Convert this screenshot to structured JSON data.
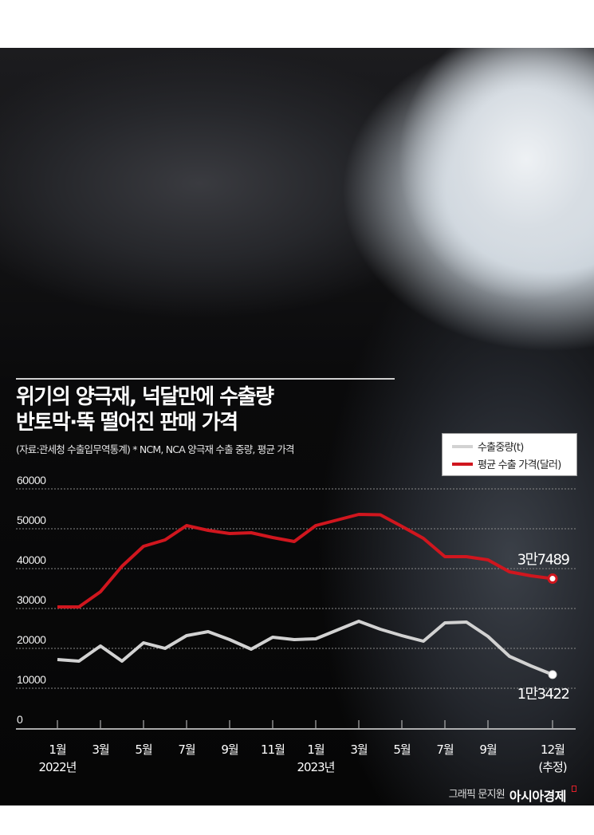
{
  "title_lines": [
    "위기의 양극재, 넉달만에 수출량",
    "반토막·뚝 떨어진 판매 가격"
  ],
  "source": "(자료:관세청 수출입무역통계)  * NCM, NCA 양극재 수출 중량, 평균 가격",
  "credit": "그래픽 문지원",
  "logo": "아시아경제",
  "colors": {
    "price": "#d0161e",
    "weight": "#d2d2d2",
    "background": "#0a0a0b"
  },
  "chart_data": {
    "type": "line",
    "title": "위기의 양극재, 넉달만에 수출량 반토막·뚝 떨어진 판매 가격",
    "ylim": [
      0,
      60000
    ],
    "yticks": [
      "0",
      "10000",
      "20000",
      "30000",
      "40000",
      "50000",
      "60000"
    ],
    "grid": true,
    "legend_position": "top-right",
    "x": [
      "2022-01",
      "2022-02",
      "2022-03",
      "2022-04",
      "2022-05",
      "2022-06",
      "2022-07",
      "2022-08",
      "2022-09",
      "2022-10",
      "2022-11",
      "2022-12",
      "2023-01",
      "2023-02",
      "2023-03",
      "2023-04",
      "2023-05",
      "2023-06",
      "2023-07",
      "2023-08",
      "2023-09",
      "2023-10",
      "2023-11",
      "2023-12"
    ],
    "xtick_labels": [
      {
        "month": 1,
        "label": "1월",
        "sub": "2022년"
      },
      {
        "month": 3,
        "label": "3월",
        "sub": ""
      },
      {
        "month": 5,
        "label": "5월",
        "sub": ""
      },
      {
        "month": 7,
        "label": "7월",
        "sub": ""
      },
      {
        "month": 9,
        "label": "9월",
        "sub": ""
      },
      {
        "month": 11,
        "label": "11월",
        "sub": ""
      },
      {
        "month": 13,
        "label": "1월",
        "sub": "2023년"
      },
      {
        "month": 15,
        "label": "3월",
        "sub": ""
      },
      {
        "month": 17,
        "label": "5월",
        "sub": ""
      },
      {
        "month": 19,
        "label": "7월",
        "sub": ""
      },
      {
        "month": 21,
        "label": "9월",
        "sub": ""
      },
      {
        "month": 24,
        "label": "12월",
        "sub": "(추정)"
      }
    ],
    "series": [
      {
        "name": "수출중량(t)",
        "color": "#d2d2d2",
        "values": [
          17200,
          16800,
          20600,
          16800,
          21400,
          20000,
          23200,
          24200,
          22200,
          19800,
          22800,
          22200,
          22400,
          24600,
          26800,
          24800,
          23200,
          21800,
          26400,
          26600,
          23000,
          18000,
          15600,
          13422
        ],
        "end_label": "1만3422"
      },
      {
        "name": "평균 수출 가격(달러)",
        "color": "#d0161e",
        "values": [
          30400,
          30400,
          34200,
          40600,
          45600,
          47200,
          50800,
          49600,
          48800,
          49000,
          47800,
          46800,
          50800,
          52200,
          53600,
          53500,
          50600,
          47600,
          43000,
          43000,
          42200,
          39200,
          38200,
          37489
        ],
        "end_label": "3만7489"
      }
    ]
  }
}
